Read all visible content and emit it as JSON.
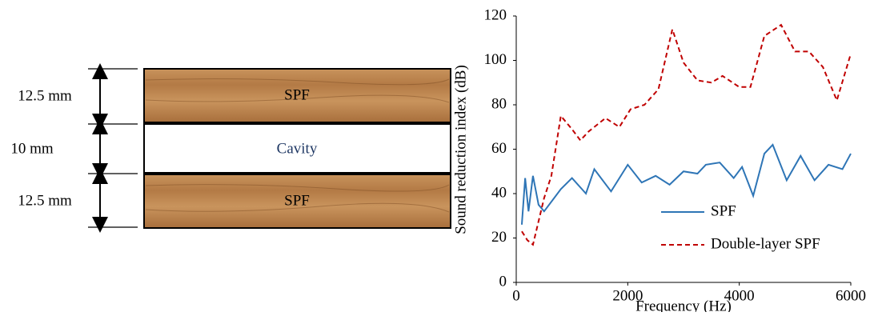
{
  "diagram": {
    "layers": [
      {
        "label": "SPF"
      },
      {
        "label": "Cavity"
      },
      {
        "label": "SPF"
      }
    ],
    "dimensions": [
      "12.5 mm",
      "10 mm",
      "12.5 mm"
    ]
  },
  "chart_data": {
    "type": "line",
    "x_label": "Frequency (Hz)",
    "y_label": "Sound reduction index (dB)",
    "xlim": [
      0,
      6000
    ],
    "xticks": [
      0,
      2000,
      4000,
      6000
    ],
    "ylim": [
      0,
      120
    ],
    "yticks": [
      0,
      20,
      40,
      60,
      80,
      100,
      120
    ],
    "legend": "lower right",
    "series": [
      {
        "name": "SPF",
        "color": "#2e75b6",
        "dash": false,
        "x": [
          100,
          160,
          220,
          300,
          400,
          500,
          800,
          1000,
          1250,
          1400,
          1700,
          2000,
          2250,
          2500,
          2750,
          3000,
          3250,
          3400,
          3650,
          3900,
          4050,
          4250,
          4450,
          4600,
          4850,
          5100,
          5350,
          5600,
          5850,
          6000
        ],
        "values": [
          26,
          47,
          32,
          48,
          35,
          32,
          42,
          47,
          40,
          51,
          41,
          53,
          45,
          48,
          44,
          50,
          49,
          53,
          54,
          47,
          52,
          39,
          58,
          62,
          46,
          57,
          46,
          53,
          51,
          58
        ]
      },
      {
        "name": "Double-layer SPF",
        "color": "#c00000",
        "dash": true,
        "x": [
          100,
          200,
          300,
          500,
          630,
          800,
          1000,
          1150,
          1300,
          1600,
          1850,
          2050,
          2300,
          2550,
          2800,
          3000,
          3250,
          3500,
          3700,
          4000,
          4200,
          4450,
          4750,
          5000,
          5250,
          5500,
          5750,
          6000
        ],
        "values": [
          23,
          19,
          17,
          38,
          48,
          75,
          69,
          64,
          68,
          74,
          70,
          78,
          80,
          87,
          114,
          99,
          91,
          90,
          93,
          88,
          88,
          111,
          116,
          104,
          104,
          97,
          82,
          103
        ]
      }
    ]
  }
}
